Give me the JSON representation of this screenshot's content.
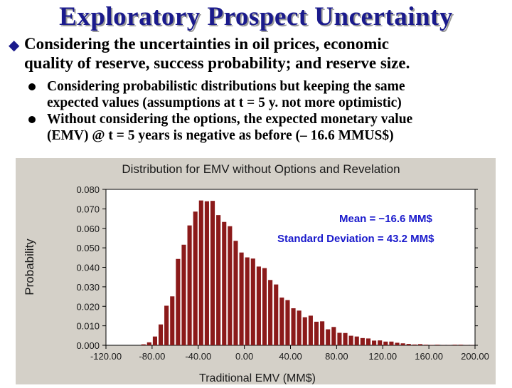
{
  "slide": {
    "title": "Exploratory Prospect Uncertainty",
    "main_bullet": "Considering the uncertainties in oil prices, economic quality of reserve, success probability; and reserve size.",
    "main_bullet_line1": "Considering the uncertainties in oil prices, economic",
    "main_bullet_line2": "quality of reserve, success probability; and reserve size.",
    "sub_bullets": [
      {
        "line1": "Considering probabilistic distributions but keeping the same",
        "line2": "expected values (assumptions at t = 5 y. not more optimistic)"
      },
      {
        "line1": "Without considering the options, the expected monetary value",
        "line2": "(EMV) @ t = 5 years is negative as before (– 16.6 MMUS$)"
      }
    ]
  },
  "colors": {
    "title": "#1a1a8c",
    "bar": "#8b1a1a",
    "chart_bg": "#d4d0c8",
    "annotation": "#1a1acc"
  },
  "chart_data": {
    "type": "bar",
    "title": "Distribution for EMV without Options and Revelation",
    "xlabel": "Traditional EMV (MM$)",
    "ylabel": "Probability",
    "xlim": [
      -120,
      200
    ],
    "ylim": [
      0,
      0.08
    ],
    "xticks": [
      "-120.00",
      "-80.00",
      "-40.00",
      "0.00",
      "40.00",
      "80.00",
      "120.00",
      "160.00",
      "200.00"
    ],
    "yticks": [
      "0.000",
      "0.010",
      "0.020",
      "0.030",
      "0.040",
      "0.050",
      "0.060",
      "0.070",
      "0.080"
    ],
    "bin_width": 5,
    "x": [
      -90,
      -85,
      -80,
      -75,
      -70,
      -65,
      -60,
      -55,
      -50,
      -45,
      -40,
      -35,
      -30,
      -25,
      -20,
      -15,
      -10,
      -5,
      0,
      5,
      10,
      15,
      20,
      25,
      30,
      35,
      40,
      45,
      50,
      55,
      60,
      65,
      70,
      75,
      80,
      85,
      90,
      95,
      100,
      105,
      110,
      115,
      120,
      125,
      130,
      135,
      140,
      145,
      150,
      155,
      160,
      165,
      170,
      175,
      180,
      185,
      190,
      195
    ],
    "values": [
      0.0005,
      0.0015,
      0.0045,
      0.0107,
      0.0203,
      0.0251,
      0.0443,
      0.0516,
      0.0615,
      0.0686,
      0.0743,
      0.0739,
      0.0741,
      0.0668,
      0.0633,
      0.0611,
      0.0536,
      0.0476,
      0.0451,
      0.0445,
      0.0404,
      0.0396,
      0.0335,
      0.0312,
      0.0245,
      0.0232,
      0.019,
      0.0178,
      0.0144,
      0.0152,
      0.0121,
      0.0123,
      0.0082,
      0.0094,
      0.0064,
      0.0063,
      0.0049,
      0.0045,
      0.0037,
      0.0035,
      0.0024,
      0.0025,
      0.0019,
      0.0019,
      0.0013,
      0.001,
      0.0007,
      0.0004,
      0.0006,
      0.0003,
      0.0002,
      0.0003,
      0.0001,
      0.0001,
      0.0003,
      0.0003,
      0.0001,
      0.0001
    ],
    "annotations": [
      "Mean = −16.6 MM$",
      "Standard Deviation =   43.2 MM$"
    ],
    "grid": false,
    "legend": "none"
  }
}
